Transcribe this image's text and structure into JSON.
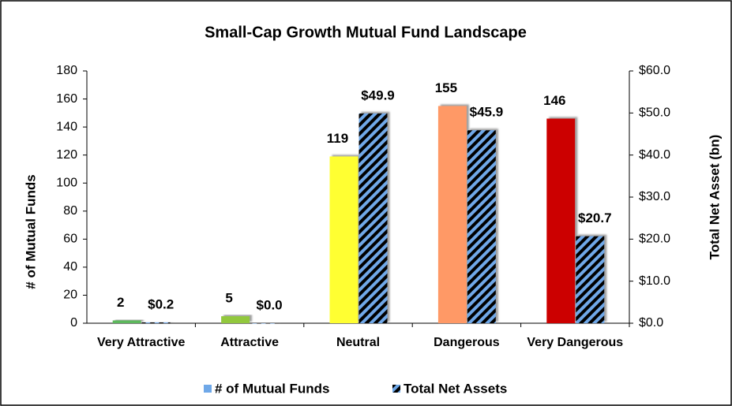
{
  "chart_data": {
    "type": "bar",
    "title": "Small-Cap Growth Mutual Fund Landscape",
    "ylabel": "# of Mutual Funds",
    "y2label": "Total Net Asset (bn)",
    "categories": [
      "Very Attractive",
      "Attractive",
      "Neutral",
      "Dangerous",
      "Very Dangerous"
    ],
    "series": [
      {
        "name": "# of Mutual Funds",
        "color": "#6fa8e8",
        "colors": [
          "#5cb85c",
          "#92c83e",
          "#ffff33",
          "#ff9966",
          "#cc0000"
        ],
        "values": [
          2,
          5,
          119,
          155,
          146
        ]
      },
      {
        "name": "Total Net Assets",
        "color": "#6fa8e8",
        "pattern": "hatch",
        "axis": "y2",
        "values": [
          0.2,
          0.0,
          49.9,
          45.9,
          20.7
        ],
        "value_labels": [
          "$0.2",
          "$0.0",
          "$49.9",
          "$45.9",
          "$20.7"
        ]
      }
    ],
    "ylim": [
      0,
      180
    ],
    "yticks": [
      0,
      20,
      40,
      60,
      80,
      100,
      120,
      140,
      160,
      180
    ],
    "y2lim": [
      0,
      60
    ],
    "y2ticks": [
      {
        "value": 0,
        "label": "$0.0"
      },
      {
        "value": 10,
        "label": "$10.0"
      },
      {
        "value": 20,
        "label": "$20.0"
      },
      {
        "value": 30,
        "label": "$30.0"
      },
      {
        "value": 40,
        "label": "$40.0"
      },
      {
        "value": 50,
        "label": "$50.0"
      },
      {
        "value": 60,
        "label": "$60.0"
      }
    ],
    "legend": "bottom"
  }
}
